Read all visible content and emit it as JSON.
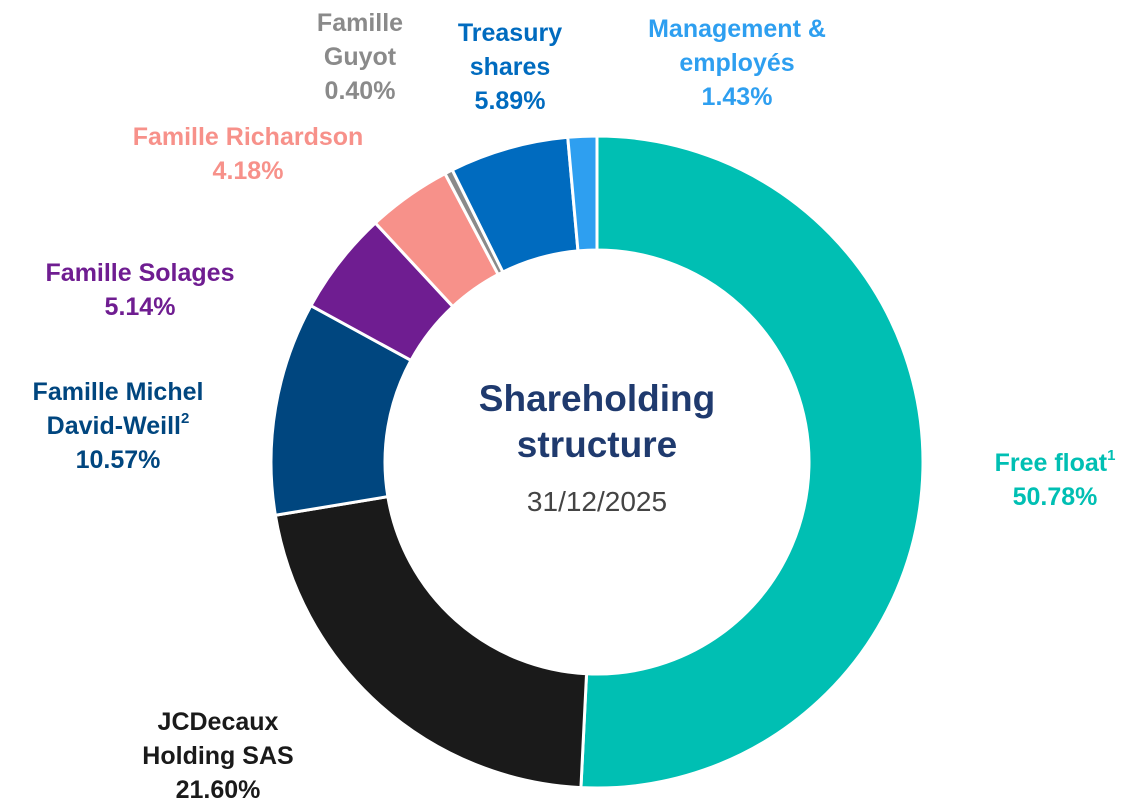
{
  "chart_data": {
    "type": "donut",
    "title": "Shareholding structure",
    "subtitle": "31/12/2025",
    "categories": [
      "Free float",
      "JCDecaux Holding SAS",
      "Famille Michel David-Weill",
      "Famille Solages",
      "Famille Richardson",
      "Famille Guyot",
      "Treasury shares",
      "Management & employés"
    ],
    "values": [
      50.78,
      21.6,
      10.57,
      5.14,
      4.18,
      0.4,
      5.89,
      1.43
    ],
    "value_labels": [
      "50.78%",
      "21.60%",
      "10.57%",
      "5.14%",
      "4.18%",
      "0.40%",
      "5.89%",
      "1.43%"
    ],
    "footnotes": {
      "0": "1",
      "2": "2"
    },
    "colors": [
      "#00bfb3",
      "#1a1a1a",
      "#00467f",
      "#6f1d91",
      "#f7918a",
      "#8a8a8a",
      "#006bbf",
      "#2e9ff0"
    ]
  }
}
